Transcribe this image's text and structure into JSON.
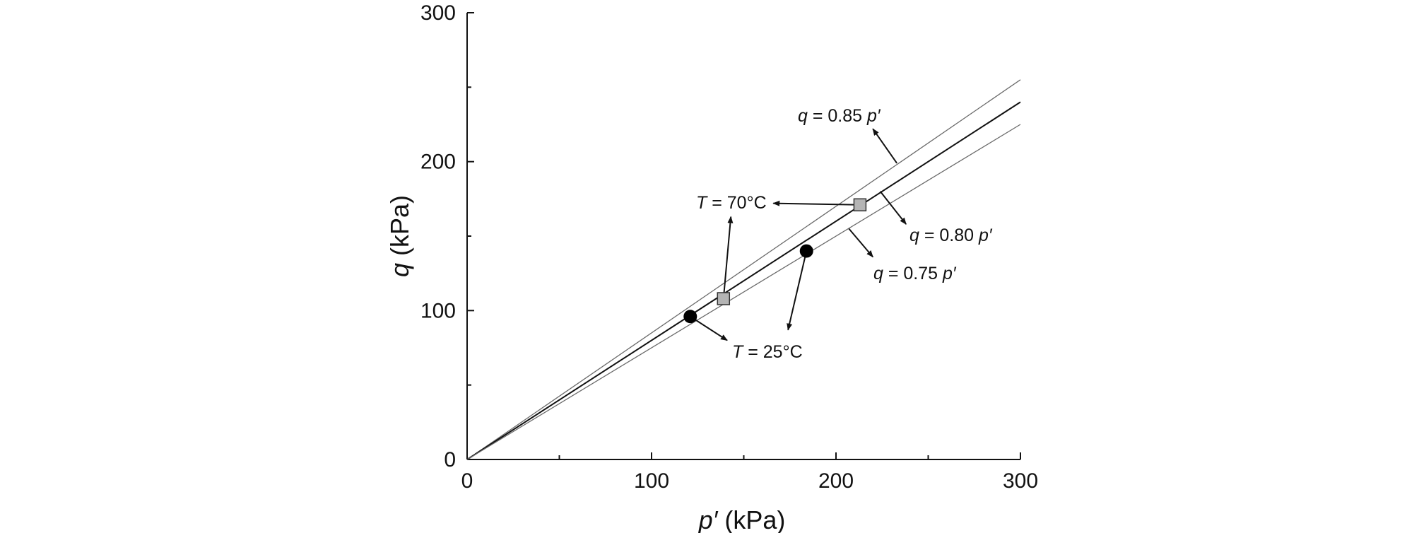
{
  "chart_data": {
    "type": "scatter",
    "title": "",
    "xlabel": {
      "var": "p′",
      "unit": " (kPa)"
    },
    "ylabel": {
      "var": "q",
      "unit": " (kPa)"
    },
    "xlim": [
      0,
      300
    ],
    "ylim": [
      0,
      300
    ],
    "xticks": [
      0,
      100,
      200,
      300
    ],
    "yticks": [
      0,
      100,
      200,
      300
    ],
    "tick_labels": {
      "x": [
        "0",
        "100",
        "200",
        "300"
      ],
      "y": [
        "0",
        "100",
        "200",
        "300"
      ]
    },
    "grid": false,
    "lines": [
      {
        "name": "q = 0.85 p′",
        "slope": 0.85,
        "x_end": 300,
        "style": "thin-gray",
        "label": {
          "var": "q",
          "mid": " = 0.85 ",
          "var2": "p′"
        }
      },
      {
        "name": "q = 0.80 p′",
        "slope": 0.8,
        "x_end": 300,
        "style": "dark",
        "label": {
          "var": "q",
          "mid": " = 0.80 ",
          "var2": "p′"
        }
      },
      {
        "name": "q = 0.75 p′",
        "slope": 0.75,
        "x_end": 300,
        "style": "thin-gray",
        "label": {
          "var": "q",
          "mid": " = 0.75 ",
          "var2": "p′"
        }
      }
    ],
    "series": [
      {
        "name": "T = 25°C",
        "marker": "circle",
        "color": "#000000",
        "points": [
          {
            "x": 121,
            "y": 96
          },
          {
            "x": 184,
            "y": 140
          }
        ],
        "label": {
          "var": "T",
          "mid": " = 25°C"
        }
      },
      {
        "name": "T = 70°C",
        "marker": "square",
        "color": "#b4b4b4",
        "points": [
          {
            "x": 139,
            "y": 108
          },
          {
            "x": 213,
            "y": 171
          }
        ],
        "label": {
          "var": "T",
          "mid": " = 70°C"
        }
      }
    ],
    "annotations": [
      {
        "text": "q = 0.85 p′",
        "arrow_from": [
          233,
          199
        ],
        "arrow_to": [
          220,
          222
        ]
      },
      {
        "text": "q = 0.80 p′",
        "arrow_from": [
          224,
          180
        ],
        "arrow_to": [
          238,
          158
        ]
      },
      {
        "text": "q = 0.75 p′",
        "arrow_from": [
          207,
          155
        ],
        "arrow_to": [
          220,
          136
        ]
      },
      {
        "text": "T = 70°C",
        "arrows": [
          {
            "from": [
              213,
              171
            ],
            "to": [
              166,
              172
            ]
          },
          {
            "from": [
              139,
              108
            ],
            "to": [
              143,
              163
            ]
          }
        ]
      },
      {
        "text": "T = 25°C",
        "arrows": [
          {
            "from": [
              121,
              96
            ],
            "to": [
              141,
              80
            ]
          },
          {
            "from": [
              184,
              140
            ],
            "to": [
              174,
              87
            ]
          }
        ]
      }
    ]
  }
}
